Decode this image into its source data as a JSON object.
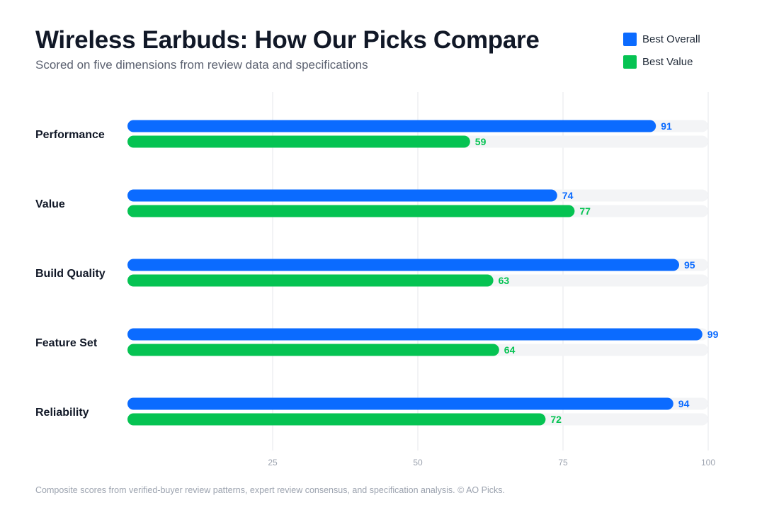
{
  "header": {
    "title": "Wireless Earbuds: How Our Picks Compare",
    "subtitle": "Scored on five dimensions from review data and specifications"
  },
  "footer": {
    "note": "Composite scores from verified-buyer review patterns, expert review consensus, and specification analysis. © AO Picks."
  },
  "colors": {
    "best_overall": "#0b6bff",
    "best_value": "#05c352",
    "track": "#f3f4f6",
    "grid": "#e5e7eb",
    "tick_text": "#9ca3af",
    "category_text": "#111827"
  },
  "chart_data": {
    "type": "bar",
    "orientation": "horizontal",
    "title": "Wireless Earbuds: How Our Picks Compare",
    "subtitle": "Scored on five dimensions from review data and specifications",
    "categories": [
      "Performance",
      "Value",
      "Build Quality",
      "Feature Set",
      "Reliability"
    ],
    "series": [
      {
        "name": "Best Overall",
        "color": "#0b6bff",
        "values": [
          91,
          74,
          95,
          99,
          94
        ]
      },
      {
        "name": "Best Value",
        "color": "#05c352",
        "values": [
          59,
          77,
          63,
          64,
          72
        ]
      }
    ],
    "xlim": [
      0,
      100
    ],
    "xticks": [
      25,
      50,
      75,
      100
    ],
    "xlabel": "",
    "ylabel": "",
    "grid": true,
    "legend": "top-right",
    "data_labels": true
  }
}
